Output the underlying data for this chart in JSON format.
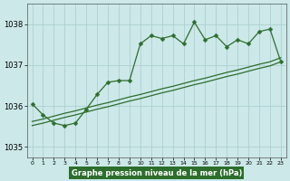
{
  "title": "Graphe pression niveau de la mer (hPa)",
  "x_values": [
    0,
    1,
    2,
    3,
    4,
    5,
    6,
    7,
    8,
    9,
    10,
    11,
    12,
    13,
    14,
    15,
    16,
    17,
    18,
    19,
    20,
    21,
    22,
    23
  ],
  "line_jagged": [
    1036.05,
    1035.78,
    1035.58,
    1035.52,
    1035.58,
    1035.92,
    1036.28,
    1036.58,
    1036.62,
    1036.62,
    1037.52,
    1037.72,
    1037.65,
    1037.72,
    1037.52,
    1038.05,
    1037.62,
    1037.72,
    1037.45,
    1037.62,
    1037.52,
    1037.82,
    1037.88,
    1037.08
  ],
  "line_straight1": [
    1035.52,
    1035.58,
    1035.65,
    1035.72,
    1035.78,
    1035.85,
    1035.92,
    1035.98,
    1036.05,
    1036.12,
    1036.18,
    1036.25,
    1036.32,
    1036.38,
    1036.45,
    1036.52,
    1036.58,
    1036.65,
    1036.72,
    1036.78,
    1036.85,
    1036.92,
    1036.98,
    1037.08
  ],
  "line_straight2": [
    1035.62,
    1035.68,
    1035.75,
    1035.82,
    1035.88,
    1035.95,
    1036.02,
    1036.08,
    1036.15,
    1036.22,
    1036.28,
    1036.35,
    1036.42,
    1036.48,
    1036.55,
    1036.62,
    1036.68,
    1036.75,
    1036.82,
    1036.88,
    1036.95,
    1037.02,
    1037.08,
    1037.18
  ],
  "ylim": [
    1034.75,
    1038.5
  ],
  "yticks": [
    1035,
    1036,
    1037,
    1038
  ],
  "line_color": "#2d6e2d",
  "bg_color": "#cce8e8",
  "grid_color": "#a8cccc",
  "title_bg": "#2d6e2d",
  "title_color": "#ffffff",
  "markersize": 2.5
}
